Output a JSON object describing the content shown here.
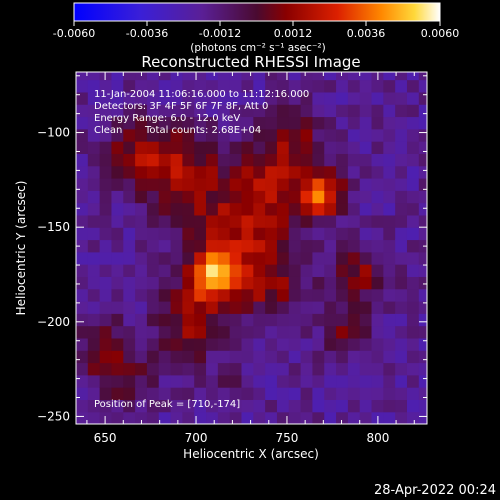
{
  "colorbar": {
    "tick_labels": [
      "-0.0060",
      "-0.0036",
      "-0.0012",
      "0.0012",
      "0.0036",
      "0.0060"
    ],
    "unit_label": "(photons cm⁻² s⁻¹ asec⁻²)"
  },
  "chart_data": {
    "type": "heatmap",
    "title": "Reconstructed RHESSI Image",
    "xlabel": "Heliocentric X (arcsec)",
    "ylabel": "Heliocentric Y (arcsec)",
    "xlim": [
      634,
      827
    ],
    "ylim": [
      -254,
      -68
    ],
    "xticks": [
      650,
      700,
      750,
      800
    ],
    "yticks": [
      -100,
      -150,
      -200,
      -250
    ],
    "colorbar_range": [
      -0.006,
      0.006
    ],
    "colormap": "rhessi-blue-purple-red-yellow-white",
    "sources": [
      {
        "name": "peak",
        "x": 710,
        "y": -174,
        "amplitude": 0.0058
      },
      {
        "name": "secondary",
        "x": 770,
        "y": -133,
        "amplitude": 0.005
      }
    ],
    "annotations": [
      "11-Jan-2004 11:06:16.000 to 11:12:16.000",
      "Detectors: 3F 4F 5F 6F 7F 8F, Att 0",
      "Energy Range: 6.0 - 12.0 keV",
      "Clean",
      "Total counts: 2.68E+04"
    ],
    "peak_label": "Position of Peak = [710,-174]",
    "grid": false
  },
  "footer": {
    "timestamp": "28-Apr-2022 00:24"
  }
}
